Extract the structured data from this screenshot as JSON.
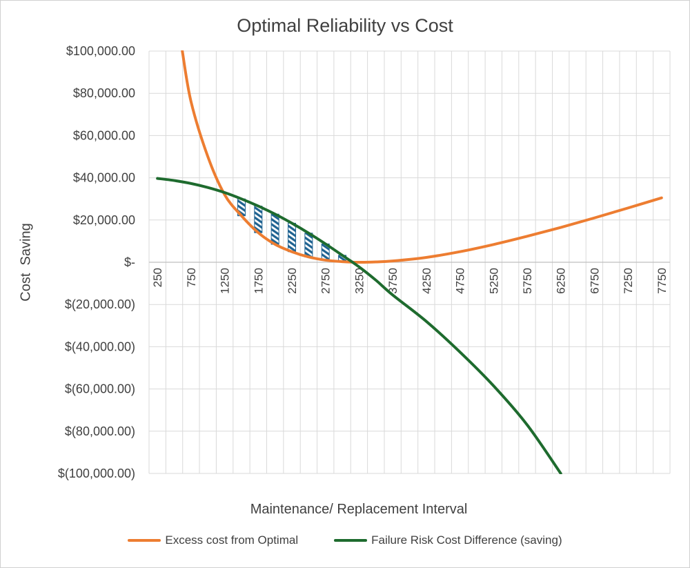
{
  "chart_data": {
    "type": "line",
    "title": "Optimal Reliability vs Cost",
    "xlabel": "Maintenance/ Replacement Interval",
    "ylabel": "Cost  Saving",
    "x_ticks": [
      "250",
      "750",
      "1250",
      "1750",
      "2250",
      "2750",
      "3250",
      "3750",
      "4250",
      "4750",
      "5250",
      "5750",
      "6250",
      "6750",
      "7250",
      "7750"
    ],
    "y_ticks": [
      {
        "value": 100000,
        "label": "$100,000.00"
      },
      {
        "value": 80000,
        "label": "$80,000.00"
      },
      {
        "value": 60000,
        "label": "$60,000.00"
      },
      {
        "value": 40000,
        "label": "$40,000.00"
      },
      {
        "value": 20000,
        "label": "$20,000.00"
      },
      {
        "value": 0,
        "label": "$-"
      },
      {
        "value": -20000,
        "label": "$(20,000.00)"
      },
      {
        "value": -40000,
        "label": "$(40,000.00)"
      },
      {
        "value": -60000,
        "label": "$(60,000.00)"
      },
      {
        "value": -80000,
        "label": "$(80,000.00)"
      },
      {
        "value": -100000,
        "label": "$(100,000.00)"
      }
    ],
    "ylim": [
      -100000,
      100000
    ],
    "xlim": [
      250,
      7750
    ],
    "grid": true,
    "legend_position": "bottom",
    "series": [
      {
        "name": "Excess cost from Optimal",
        "color": "#ED7D31",
        "x": [
          620,
          750,
          1000,
          1250,
          1500,
          1750,
          2000,
          2250,
          2500,
          2750,
          3000,
          3250,
          3500,
          3750,
          4250,
          4750,
          5250,
          5750,
          6250,
          6750,
          7250,
          7750
        ],
        "values": [
          100000,
          76000,
          50000,
          32000,
          22000,
          14000,
          8500,
          5000,
          2500,
          1000,
          300,
          0,
          150,
          600,
          2300,
          5000,
          8400,
          12300,
          16500,
          21000,
          25700,
          30500
        ]
      },
      {
        "name": "Failure Risk Cost Difference (saving)",
        "color": "#1E6B2E",
        "x": [
          250,
          500,
          750,
          1000,
          1250,
          1500,
          1750,
          2000,
          2250,
          2500,
          2750,
          3000,
          3250,
          3500,
          3750,
          4250,
          4750,
          5250,
          5750,
          6250
        ],
        "values": [
          39700,
          38700,
          37300,
          35400,
          33000,
          30000,
          26600,
          22800,
          18500,
          13800,
          8700,
          3300,
          -2200,
          -8500,
          -15500,
          -28000,
          -42500,
          -58500,
          -77000,
          -100000
        ]
      }
    ],
    "shaded_bars": {
      "description": "hatched gap",
      "x": [
        1500,
        1750,
        2000,
        2250,
        2500,
        2750,
        3000
      ],
      "low": [
        22000,
        14000,
        8500,
        5000,
        2500,
        1000,
        300
      ],
      "high": [
        30000,
        26600,
        22800,
        18500,
        13800,
        8700,
        3300
      ]
    }
  }
}
